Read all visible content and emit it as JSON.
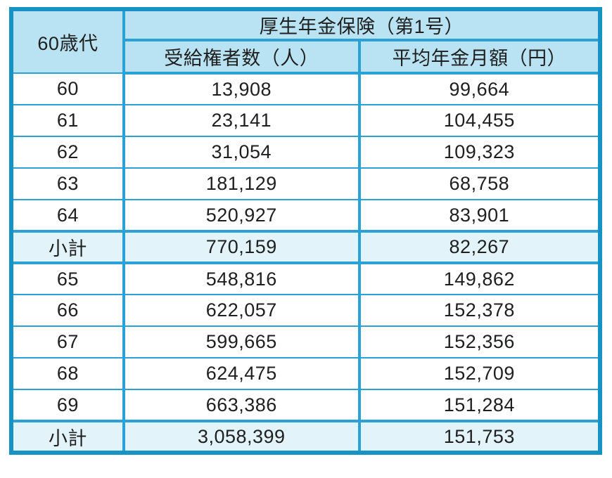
{
  "table": {
    "corner_label": "60歳代",
    "group_header": "厚生年金保険（第1号）",
    "col_headers": {
      "recipients": "受給権者数（人）",
      "avg_monthly": "平均年金月額（円）"
    },
    "rows": [
      {
        "age": "60",
        "recipients": "13,908",
        "avg_monthly": "99,664",
        "is_subtotal": false
      },
      {
        "age": "61",
        "recipients": "23,141",
        "avg_monthly": "104,455",
        "is_subtotal": false
      },
      {
        "age": "62",
        "recipients": "31,054",
        "avg_monthly": "109,323",
        "is_subtotal": false
      },
      {
        "age": "63",
        "recipients": "181,129",
        "avg_monthly": "68,758",
        "is_subtotal": false
      },
      {
        "age": "64",
        "recipients": "520,927",
        "avg_monthly": "83,901",
        "is_subtotal": false
      },
      {
        "age": "小計",
        "recipients": "770,159",
        "avg_monthly": "82,267",
        "is_subtotal": true
      },
      {
        "age": "65",
        "recipients": "548,816",
        "avg_monthly": "149,862",
        "is_subtotal": false
      },
      {
        "age": "66",
        "recipients": "622,057",
        "avg_monthly": "152,378",
        "is_subtotal": false
      },
      {
        "age": "67",
        "recipients": "599,665",
        "avg_monthly": "152,356",
        "is_subtotal": false
      },
      {
        "age": "68",
        "recipients": "624,475",
        "avg_monthly": "152,709",
        "is_subtotal": false
      },
      {
        "age": "69",
        "recipients": "663,386",
        "avg_monthly": "151,284",
        "is_subtotal": false
      },
      {
        "age": "小計",
        "recipients": "3,058,399",
        "avg_monthly": "151,753",
        "is_subtotal": true
      }
    ],
    "colors": {
      "outer_border": "#1792c4",
      "inner_border": "#2aa2d6",
      "header_bg": "#b9e3f2",
      "subtotal_bg": "#e2f3fa",
      "row_bg": "#ffffff",
      "text": "#1f1f1f"
    }
  },
  "chart_data": {
    "type": "table",
    "title": "厚生年金保険（第1号）",
    "columns": [
      "60歳代",
      "受給権者数（人）",
      "平均年金月額（円）"
    ],
    "rows": [
      [
        "60",
        13908,
        99664
      ],
      [
        "61",
        23141,
        104455
      ],
      [
        "62",
        31054,
        109323
      ],
      [
        "63",
        181129,
        68758
      ],
      [
        "64",
        520927,
        83901
      ],
      [
        "小計",
        770159,
        82267
      ],
      [
        "65",
        548816,
        149862
      ],
      [
        "66",
        622057,
        152378
      ],
      [
        "67",
        599665,
        152356
      ],
      [
        "68",
        624475,
        152709
      ],
      [
        "69",
        663386,
        151284
      ],
      [
        "小計",
        3058399,
        151753
      ]
    ]
  }
}
